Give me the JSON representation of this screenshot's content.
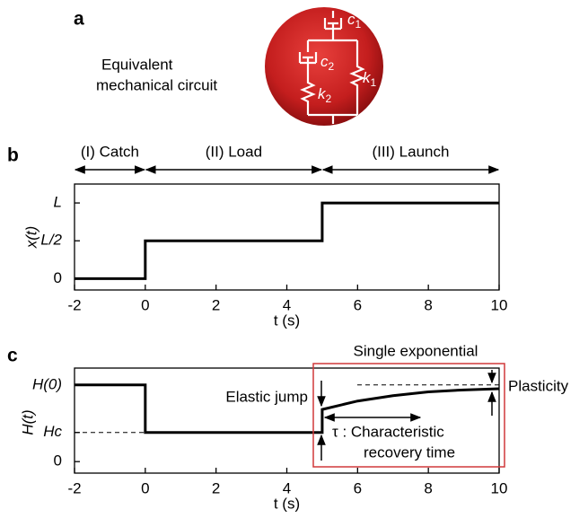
{
  "figure": {
    "panel_labels": [
      "a",
      "b",
      "c"
    ],
    "circuit": {
      "label_lines": [
        "Equivalent",
        "mechanical circuit"
      ],
      "components": [
        {
          "symbol": "c",
          "sub": "1"
        },
        {
          "symbol": "c",
          "sub": "2"
        },
        {
          "symbol": "k",
          "sub": "1"
        },
        {
          "symbol": "k",
          "sub": "2"
        }
      ]
    }
  },
  "chart_data": [
    {
      "type": "line",
      "xlabel": "t (s)",
      "ylabel": "x(t)",
      "x": [
        -2,
        0,
        0,
        5,
        5,
        10
      ],
      "values": [
        0,
        0,
        0.5,
        0.5,
        1,
        1
      ],
      "color": "#000000",
      "xlim": [
        -2,
        10
      ],
      "xticks": [
        -2,
        0,
        2,
        4,
        6,
        8,
        10
      ],
      "ylim": [
        -0.15,
        1.25
      ],
      "yticks": [
        0,
        {
          "value": 0.5,
          "label": "L/2"
        },
        {
          "value": 1,
          "label": "L"
        }
      ],
      "phases": [
        {
          "label": "(I) Catch",
          "range": [
            -2,
            0
          ]
        },
        {
          "label": "(II) Load",
          "range": [
            0,
            5
          ]
        },
        {
          "label": "(III) Launch",
          "range": [
            5,
            10
          ]
        }
      ]
    },
    {
      "type": "line",
      "xlabel": "t (s)",
      "ylabel": "H(t)",
      "x": [
        -2,
        0,
        0,
        5,
        5,
        6,
        7,
        8,
        9,
        10
      ],
      "values": [
        1,
        1,
        0.38,
        0.38,
        0.68,
        0.79,
        0.86,
        0.91,
        0.935,
        0.95
      ],
      "color": "#000000",
      "xlim": [
        -2,
        10
      ],
      "xticks": [
        -2,
        0,
        2,
        4,
        6,
        8,
        10
      ],
      "ylim": [
        -0.15,
        1.22
      ],
      "yticks": [
        0,
        {
          "value": 0.38,
          "label": "Hc"
        },
        {
          "value": 1,
          "label": "H(0)"
        }
      ],
      "annotations": [
        "Single exponential",
        "Elastic jump",
        "Plasticity",
        "τ : Characteristic",
        "recovery time"
      ]
    }
  ]
}
